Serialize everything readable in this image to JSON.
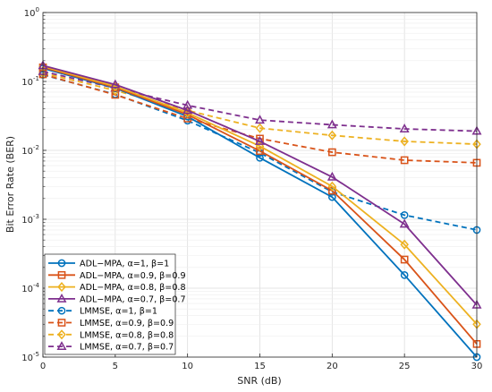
{
  "chart_data": {
    "type": "line",
    "xlabel": "SNR (dB)",
    "ylabel": "Bit Error Rate (BER)",
    "xlim": [
      0,
      30
    ],
    "ylim": [
      1e-05,
      1
    ],
    "yscale": "log",
    "grid": true,
    "xticks": [
      "0",
      "5",
      "10",
      "15",
      "20",
      "25",
      "30"
    ],
    "yticks": [
      {
        "value": 1e-05,
        "base": "10",
        "exp": "-5"
      },
      {
        "value": 0.0001,
        "base": "10",
        "exp": "-4"
      },
      {
        "value": 0.001,
        "base": "10",
        "exp": "-3"
      },
      {
        "value": 0.01,
        "base": "10",
        "exp": "-2"
      },
      {
        "value": 0.1,
        "base": "10",
        "exp": "-1"
      },
      {
        "value": 1,
        "base": "10",
        "exp": "0"
      }
    ],
    "legend_position": "bottom-left",
    "x": [
      0,
      5,
      10,
      15,
      20,
      25,
      30
    ],
    "series": [
      {
        "name": "ADL−MPA, α=1, β=1",
        "color": "#0072BD",
        "marker": "circle",
        "dash": false,
        "values": [
          0.155,
          0.08,
          0.031,
          0.0078,
          0.0021,
          0.000155,
          1e-05
        ]
      },
      {
        "name": "ADL−MPA, α=0.9, β=0.9",
        "color": "#D95319",
        "marker": "square",
        "dash": false,
        "values": [
          0.16,
          0.082,
          0.033,
          0.0098,
          0.0026,
          0.00026,
          1.55e-05
        ]
      },
      {
        "name": "ADL−MPA, α=0.8, β=0.8",
        "color": "#EDB120",
        "marker": "diamond",
        "dash": false,
        "values": [
          0.165,
          0.085,
          0.035,
          0.0115,
          0.003,
          0.00043,
          3e-05
        ]
      },
      {
        "name": "ADL−MPA, α=0.7, β=0.7",
        "color": "#7E2F8E",
        "marker": "triangle",
        "dash": false,
        "values": [
          0.17,
          0.09,
          0.038,
          0.0135,
          0.0041,
          0.00085,
          5.7e-05
        ]
      },
      {
        "name": "LMMSE, α=1, β=1",
        "color": "#0072BD",
        "marker": "circle",
        "dash": true,
        "values": [
          0.125,
          0.065,
          0.027,
          0.0092,
          0.0025,
          0.00115,
          0.0007
        ]
      },
      {
        "name": "LMMSE, α=0.9, β=0.9",
        "color": "#D95319",
        "marker": "square",
        "dash": true,
        "values": [
          0.127,
          0.064,
          0.029,
          0.0148,
          0.0094,
          0.0072,
          0.0066
        ]
      },
      {
        "name": "LMMSE, α=0.8, β=0.8",
        "color": "#EDB120",
        "marker": "diamond",
        "dash": true,
        "values": [
          0.133,
          0.074,
          0.038,
          0.021,
          0.0165,
          0.0135,
          0.0123
        ]
      },
      {
        "name": "LMMSE, α=0.7, β=0.7",
        "color": "#7E2F8E",
        "marker": "triangle",
        "dash": true,
        "values": [
          0.14,
          0.08,
          0.045,
          0.0275,
          0.0235,
          0.0205,
          0.019
        ]
      }
    ]
  }
}
